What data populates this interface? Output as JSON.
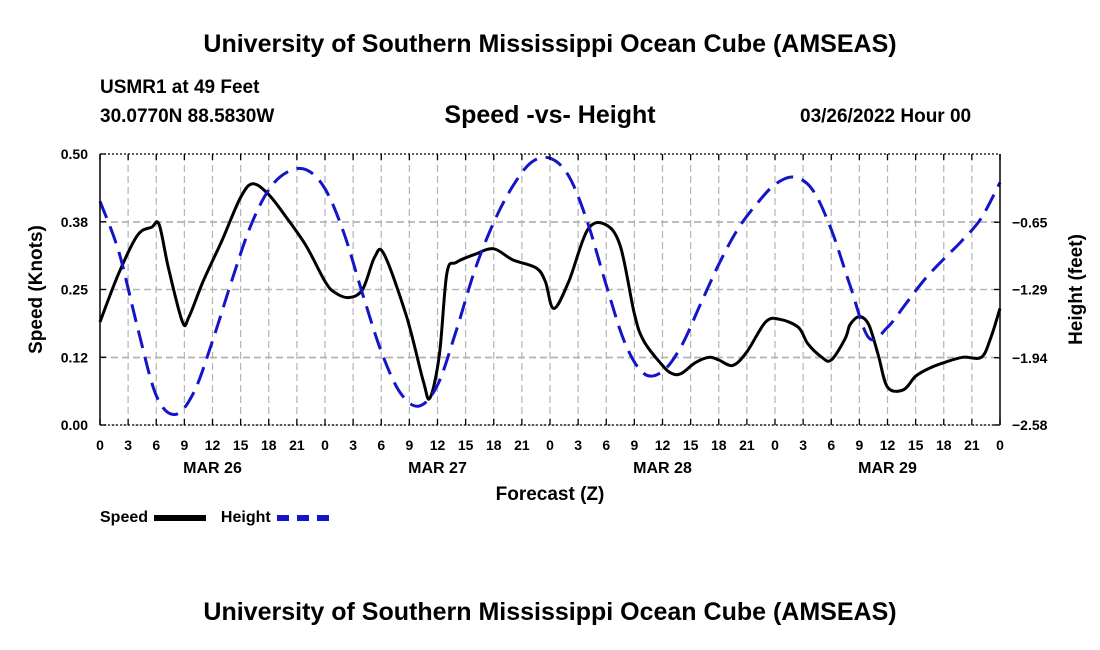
{
  "header": {
    "title": "University of Southern Mississippi Ocean Cube (AMSEAS)",
    "station": "USMR1 at 49 Feet",
    "coords": "30.0770N  88.5830W",
    "subtitle": "Speed -vs- Height",
    "datetime": "03/26/2022 Hour 00"
  },
  "footer": {
    "title": "University of Southern Mississippi Ocean Cube (AMSEAS)"
  },
  "legend": {
    "speed_label": "Speed",
    "height_label": "Height"
  },
  "colors": {
    "speed": "#000000",
    "height": "#1414c8",
    "grid": "#b4b4b4"
  },
  "chart_data": {
    "type": "line",
    "title": "Speed -vs- Height",
    "xlabel": "Forecast (Z)",
    "ylabel": "Speed (Knots)",
    "y2label": "Height (feet)",
    "xlim": [
      0,
      96
    ],
    "ylim": [
      0,
      0.5
    ],
    "y2lim": [
      -2.58,
      0.0
    ],
    "yticks": [
      "0.00",
      "0.12",
      "0.25",
      "0.38",
      "0.50"
    ],
    "yticks_values": [
      0,
      0.125,
      0.25,
      0.375,
      0.5
    ],
    "y2ticks": [
      "−2.58",
      "−1.94",
      "−1.29",
      "−0.65"
    ],
    "y2ticks_values": [
      -2.58,
      -1.94,
      -1.29,
      -0.65
    ],
    "xticks": [
      "0",
      "3",
      "6",
      "9",
      "12",
      "15",
      "18",
      "21",
      "0",
      "3",
      "6",
      "9",
      "12",
      "15",
      "18",
      "21",
      "0",
      "3",
      "6",
      "9",
      "12",
      "15",
      "18",
      "21",
      "0",
      "3",
      "6",
      "9",
      "12",
      "15",
      "18",
      "21",
      "0"
    ],
    "day_labels": [
      {
        "label": "MAR 26",
        "x": 12
      },
      {
        "label": "MAR 27",
        "x": 36
      },
      {
        "label": "MAR 28",
        "x": 60
      },
      {
        "label": "MAR 29",
        "x": 84
      }
    ],
    "series": [
      {
        "name": "Speed",
        "axis": "left",
        "style": "solid",
        "x": [
          0,
          2,
          4,
          5.5,
          6.3,
          7.3,
          8.8,
          9.5,
          11,
          13,
          15,
          16.3,
          18,
          20,
          22,
          24,
          25,
          26.5,
          28,
          29.3,
          30.3,
          32.7,
          34.5,
          35.2,
          36.2,
          37,
          38,
          40,
          42,
          44,
          46.5,
          47.5,
          48.4,
          50,
          52,
          53.9,
          55.5,
          57,
          58,
          60,
          61,
          62,
          63.5,
          65,
          66,
          67.5,
          69,
          71,
          72.5,
          74.5,
          75.5,
          77,
          78,
          79.5,
          80,
          81,
          82,
          83,
          84,
          85.7,
          87,
          88.5,
          90,
          92,
          94,
          95,
          96
        ],
        "values": [
          0.19,
          0.28,
          0.35,
          0.365,
          0.37,
          0.29,
          0.19,
          0.2,
          0.265,
          0.34,
          0.42,
          0.445,
          0.425,
          0.38,
          0.33,
          0.265,
          0.245,
          0.235,
          0.25,
          0.31,
          0.315,
          0.2,
          0.08,
          0.05,
          0.13,
          0.28,
          0.3,
          0.315,
          0.325,
          0.305,
          0.29,
          0.265,
          0.215,
          0.265,
          0.36,
          0.37,
          0.33,
          0.205,
          0.155,
          0.11,
          0.095,
          0.095,
          0.115,
          0.125,
          0.12,
          0.11,
          0.135,
          0.19,
          0.195,
          0.18,
          0.15,
          0.125,
          0.12,
          0.16,
          0.185,
          0.2,
          0.185,
          0.13,
          0.07,
          0.065,
          0.09,
          0.105,
          0.115,
          0.125,
          0.125,
          0.16,
          0.215
        ]
      },
      {
        "name": "Height",
        "axis": "right",
        "style": "dashed",
        "x": [
          0,
          2,
          4,
          6,
          8,
          10,
          12,
          14,
          16,
          18,
          20,
          22,
          24,
          26,
          28,
          30,
          32,
          34,
          36,
          38,
          40,
          42,
          44,
          46,
          48,
          50,
          52,
          54,
          56,
          58,
          60,
          62,
          64,
          66,
          68,
          70,
          72,
          74,
          76,
          78,
          80,
          82,
          84,
          86,
          88,
          90,
          92,
          94,
          96
        ],
        "values": [
          -0.45,
          -0.93,
          -1.65,
          -2.3,
          -2.48,
          -2.27,
          -1.78,
          -1.22,
          -0.7,
          -0.34,
          -0.17,
          -0.15,
          -0.33,
          -0.75,
          -1.33,
          -1.88,
          -2.27,
          -2.4,
          -2.2,
          -1.68,
          -1.1,
          -0.65,
          -0.31,
          -0.08,
          -0.04,
          -0.21,
          -0.65,
          -1.25,
          -1.8,
          -2.09,
          -2.07,
          -1.83,
          -1.44,
          -1.05,
          -0.72,
          -0.48,
          -0.29,
          -0.22,
          -0.34,
          -0.72,
          -1.25,
          -1.75,
          -1.65,
          -1.42,
          -1.19,
          -1.0,
          -0.82,
          -0.61,
          -0.27
        ]
      }
    ]
  }
}
